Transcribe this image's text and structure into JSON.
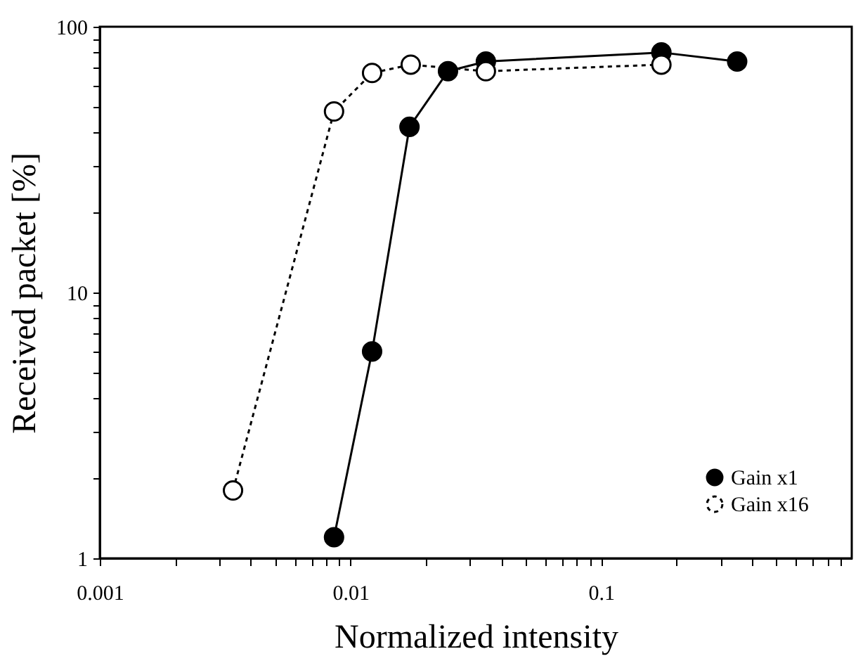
{
  "chart_data": {
    "type": "line",
    "xlabel": "Normalized intensity",
    "ylabel": "Received packet [%]",
    "log": "xy",
    "grid": false,
    "legend": "bottom right",
    "marker": "circle",
    "xlim": [
      0.001,
      1
    ],
    "ylim": [
      1,
      100
    ],
    "xticks": [
      0.001,
      {
        "value": 0.002,
        "label": null
      },
      {
        "value": 0.003,
        "label": null
      },
      {
        "value": 0.004,
        "label": null
      },
      {
        "value": 0.005,
        "label": null
      },
      {
        "value": 0.006,
        "label": null
      },
      {
        "value": 0.007,
        "label": null
      },
      {
        "value": 0.008,
        "label": null
      },
      {
        "value": 0.009,
        "label": null
      },
      0.01,
      {
        "value": 0.02,
        "label": null
      },
      {
        "value": 0.03,
        "label": null
      },
      {
        "value": 0.04,
        "label": null
      },
      {
        "value": 0.05,
        "label": null
      },
      {
        "value": 0.06,
        "label": null
      },
      {
        "value": 0.07,
        "label": null
      },
      {
        "value": 0.08,
        "label": null
      },
      {
        "value": 0.09,
        "label": null
      },
      0.1,
      {
        "value": 0.2,
        "label": null
      },
      {
        "value": 0.3,
        "label": null
      },
      {
        "value": 0.4,
        "label": null
      },
      {
        "value": 0.5,
        "label": null
      },
      {
        "value": 0.6,
        "label": null
      },
      {
        "value": 0.7,
        "label": null
      },
      {
        "value": 0.8,
        "label": null
      },
      {
        "value": 0.9,
        "label": null
      }
    ],
    "yticks": [
      1,
      {
        "value": 2,
        "label": null
      },
      {
        "value": 3,
        "label": null
      },
      {
        "value": 4,
        "label": null
      },
      {
        "value": 5,
        "label": null
      },
      {
        "value": 6,
        "label": null
      },
      {
        "value": 7,
        "label": null
      },
      {
        "value": 8,
        "label": null
      },
      {
        "value": 9,
        "label": null
      },
      10,
      {
        "value": 20,
        "label": null
      },
      {
        "value": 30,
        "label": null
      },
      {
        "value": 40,
        "label": null
      },
      {
        "value": 50,
        "label": null
      },
      {
        "value": 60,
        "label": null
      },
      {
        "value": 70,
        "label": null
      },
      {
        "value": 80,
        "label": null
      },
      {
        "value": 90,
        "label": null
      },
      100
    ],
    "series": [
      {
        "name": "Gain x1",
        "color": "#000000",
        "line_style": "solid",
        "x": [
          0.0086,
          0.0122,
          0.0172,
          0.0245,
          0.0347,
          0.174,
          0.349
        ],
        "values": [
          1.2,
          6.0,
          42,
          68,
          74,
          80,
          74
        ]
      },
      {
        "name": "Gain x16",
        "color": "#000000",
        "line_style": "dotted",
        "x": [
          0.0034,
          0.0086,
          0.0122,
          0.0174,
          0.0347,
          0.174
        ],
        "values": [
          1.8,
          48,
          67,
          72,
          68,
          72
        ]
      }
    ]
  }
}
